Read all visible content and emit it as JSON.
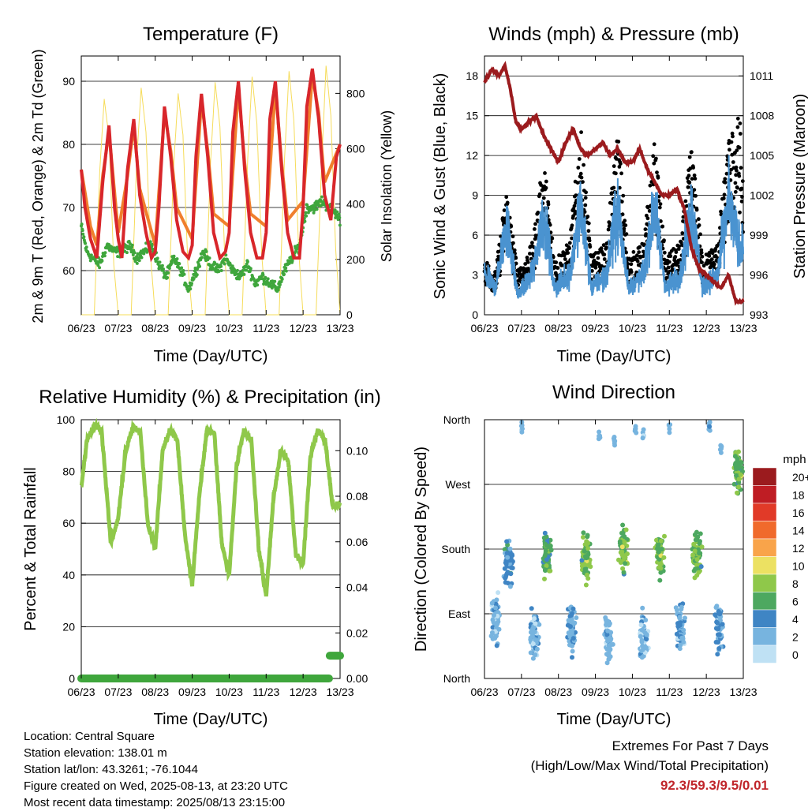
{
  "x_ticks": [
    "06/23",
    "07/23",
    "08/23",
    "09/23",
    "10/23",
    "11/23",
    "12/23",
    "13/23"
  ],
  "colors": {
    "temp_2m": "#d8262b",
    "temp_9m": "#f07f2c",
    "dewpoint": "#3fa63c",
    "solar": "#f6dc5a",
    "wind": "#4a93d0",
    "gust": "#000000",
    "pressure": "#9b1b1e",
    "humidity": "#8fc84a",
    "rain": "#3fa63c"
  },
  "chart_data": [
    {
      "type": "line",
      "title": "Temperature (F)",
      "xlabel": "Time (Day/UTC)",
      "ylabel": "2m & 9m T (Red, Orange) & 2m Td (Green)",
      "y2label": "Solar Insolation (Yellow)",
      "x_ticks": [
        "06/23",
        "07/23",
        "08/23",
        "09/23",
        "10/23",
        "11/23",
        "12/23",
        "13/23"
      ],
      "ylim": [
        53,
        94
      ],
      "yticks": [
        60,
        70,
        80,
        90
      ],
      "y2lim": [
        0,
        935
      ],
      "y2ticks": [
        0,
        200,
        400,
        600,
        800
      ],
      "grid": true,
      "series": [
        {
          "name": "2m T",
          "color": "#d8262b",
          "x": [
            0,
            0.1,
            0.25,
            0.42,
            0.58,
            0.75,
            0.9,
            1.0,
            1.1,
            1.25,
            1.42,
            1.58,
            1.75,
            1.9,
            2.0,
            2.1,
            2.25,
            2.42,
            2.58,
            2.75,
            2.9,
            3.0,
            3.1,
            3.25,
            3.42,
            3.58,
            3.75,
            3.9,
            4.0,
            4.1,
            4.25,
            4.42,
            4.58,
            4.75,
            4.9,
            5.0,
            5.1,
            5.25,
            5.42,
            5.58,
            5.75,
            5.9,
            6.0,
            6.1,
            6.25,
            6.42,
            6.58,
            6.75,
            6.9,
            7.0
          ],
          "y": [
            76,
            70,
            65,
            62,
            74,
            83,
            70,
            65,
            62,
            76,
            84,
            72,
            66,
            62,
            63,
            70,
            86,
            78,
            68,
            63,
            62,
            64,
            78,
            88,
            78,
            66,
            62,
            63,
            66,
            82,
            90,
            76,
            66,
            62,
            62,
            66,
            84,
            90,
            76,
            66,
            62,
            62,
            70,
            86,
            92,
            84,
            72,
            68,
            78,
            80
          ]
        },
        {
          "name": "9m T",
          "color": "#f07f2c",
          "x": [
            0,
            0.25,
            0.42,
            0.58,
            0.75,
            1.0,
            1.25,
            1.42,
            1.58,
            2.0,
            2.25,
            2.42,
            2.58,
            3.0,
            3.25,
            3.42,
            3.58,
            4.0,
            4.25,
            4.42,
            4.58,
            5.0,
            5.25,
            5.42,
            5.58,
            6.0,
            6.25,
            6.42,
            6.58,
            7.0
          ],
          "y": [
            76,
            67,
            64,
            75,
            82,
            66,
            75,
            83,
            73,
            64,
            85,
            79,
            70,
            65,
            87,
            79,
            69,
            67,
            89,
            77,
            69,
            67,
            89,
            77,
            68,
            71,
            91,
            85,
            74,
            80
          ]
        },
        {
          "name": "2m Td",
          "color": "#3fa63c",
          "x": [
            0,
            0.15,
            0.3,
            0.5,
            0.7,
            0.9,
            1.1,
            1.3,
            1.5,
            1.7,
            1.9,
            2.1,
            2.3,
            2.5,
            2.7,
            2.9,
            3.1,
            3.3,
            3.5,
            3.7,
            3.9,
            4.1,
            4.3,
            4.5,
            4.7,
            4.9,
            5.1,
            5.3,
            5.5,
            5.7,
            5.9,
            6.1,
            6.3,
            6.5,
            6.7,
            6.9,
            7.0
          ],
          "y": [
            67,
            63,
            62,
            61,
            64,
            63,
            63,
            64,
            62,
            63,
            64,
            61,
            59,
            62,
            60,
            57,
            60,
            63,
            61,
            60,
            62,
            60,
            59,
            61,
            58,
            59,
            58,
            57,
            60,
            62,
            64,
            70,
            70,
            71,
            70,
            69,
            68
          ]
        },
        {
          "name": "Solar",
          "color": "#f6dc5a",
          "axis": "y2",
          "x": [
            0,
            0.35,
            0.5,
            0.62,
            0.75,
            0.88,
            1.0,
            1.35,
            1.5,
            1.62,
            1.75,
            1.88,
            2.0,
            2.35,
            2.5,
            2.62,
            2.75,
            2.88,
            3.0,
            3.35,
            3.5,
            3.62,
            3.75,
            3.88,
            4.0,
            4.35,
            4.5,
            4.62,
            4.75,
            4.88,
            5.0,
            5.35,
            5.5,
            5.62,
            5.75,
            5.88,
            6.0,
            6.35,
            6.5,
            6.62,
            6.75,
            6.88,
            7.0
          ],
          "y": [
            0,
            0,
            520,
            780,
            640,
            180,
            0,
            0,
            560,
            820,
            660,
            200,
            0,
            0,
            540,
            800,
            650,
            190,
            0,
            0,
            560,
            840,
            680,
            210,
            0,
            0,
            560,
            860,
            690,
            220,
            0,
            0,
            570,
            880,
            700,
            230,
            0,
            0,
            540,
            900,
            720,
            240,
            0
          ]
        }
      ]
    },
    {
      "type": "line",
      "title": "Winds (mph) & Pressure (mb)",
      "xlabel": "Time (Day/UTC)",
      "ylabel": "Sonic Wind & Gust (Blue, Black)",
      "y2label": "Station Pressure (Maroon)",
      "x_ticks": [
        "06/23",
        "07/23",
        "08/23",
        "09/23",
        "10/23",
        "11/23",
        "12/23",
        "13/23"
      ],
      "ylim": [
        0,
        19.5
      ],
      "yticks": [
        0,
        3,
        6,
        9,
        12,
        15,
        18
      ],
      "y2lim": [
        993,
        1012.5
      ],
      "y2ticks": [
        993,
        996,
        999,
        1002,
        1005,
        1008,
        1011
      ],
      "grid": true,
      "series": [
        {
          "name": "Sonic Wind",
          "color": "#4a93d0",
          "x": [
            0,
            0.3,
            0.6,
            0.9,
            1.3,
            1.6,
            1.9,
            2.3,
            2.6,
            2.9,
            3.3,
            3.6,
            3.9,
            4.3,
            4.6,
            4.9,
            5.3,
            5.6,
            5.9,
            6.3,
            6.6,
            6.9,
            7.0
          ],
          "y": [
            3,
            2,
            7,
            1.5,
            3,
            7.5,
            2,
            3,
            8,
            2,
            3,
            8,
            2,
            3,
            8,
            2,
            3,
            8,
            2,
            3,
            8.5,
            5,
            5
          ]
        },
        {
          "name": "Gust",
          "color": "#000000",
          "x": [
            0,
            0.3,
            0.6,
            0.9,
            1.3,
            1.6,
            1.9,
            2.3,
            2.6,
            2.9,
            3.3,
            3.6,
            3.9,
            4.3,
            4.6,
            4.9,
            5.3,
            5.6,
            5.9,
            6.3,
            6.6,
            6.9,
            7.0
          ],
          "y": [
            4,
            3,
            9,
            3,
            5,
            11,
            4,
            5,
            13,
            4,
            5,
            13,
            4,
            5,
            12,
            4,
            5,
            12,
            4,
            5,
            12,
            14,
            9
          ]
        },
        {
          "name": "Station Pressure",
          "color": "#9b1b1e",
          "axis": "y2",
          "x": [
            0,
            0.2,
            0.4,
            0.55,
            0.7,
            0.85,
            1.0,
            1.2,
            1.4,
            1.6,
            1.8,
            2.0,
            2.2,
            2.4,
            2.6,
            2.8,
            3.0,
            3.2,
            3.4,
            3.6,
            3.8,
            4.0,
            4.2,
            4.4,
            4.6,
            4.8,
            5.0,
            5.2,
            5.4,
            5.6,
            5.8,
            6.0,
            6.2,
            6.4,
            6.6,
            6.8,
            7.0
          ],
          "y": [
            1010.5,
            1011.5,
            1011,
            1011.8,
            1010,
            1007.5,
            1007,
            1007.5,
            1008,
            1006.5,
            1005.5,
            1004.5,
            1006,
            1007,
            1005.5,
            1005,
            1005.5,
            1006,
            1005,
            1005.5,
            1004.5,
            1004.5,
            1005.5,
            1004,
            1003,
            1002,
            1002,
            1002.5,
            1001,
            998,
            996.5,
            996,
            995.5,
            995,
            996,
            994,
            994
          ]
        }
      ]
    },
    {
      "type": "line",
      "title": "Relative Humidity (%) & Precipitation (in)",
      "xlabel": "Time (Day/UTC)",
      "ylabel": "Percent & Total Rainfall",
      "x_ticks": [
        "06/23",
        "07/23",
        "08/23",
        "09/23",
        "10/23",
        "11/23",
        "12/23",
        "13/23"
      ],
      "ylim": [
        0,
        100
      ],
      "yticks": [
        0,
        20,
        40,
        60,
        80,
        100
      ],
      "y2lim": [
        0,
        0.1136
      ],
      "y2ticks": [
        0.0,
        0.02,
        0.04,
        0.06,
        0.08,
        0.1
      ],
      "grid": true,
      "series": [
        {
          "name": "Relative Humidity",
          "color": "#8fc84a",
          "x": [
            0,
            0.15,
            0.35,
            0.55,
            0.8,
            1.0,
            1.2,
            1.4,
            1.6,
            1.8,
            2.0,
            2.2,
            2.4,
            2.6,
            2.8,
            3.0,
            3.2,
            3.4,
            3.6,
            3.8,
            4.0,
            4.2,
            4.4,
            4.6,
            4.8,
            5.0,
            5.2,
            5.4,
            5.6,
            5.8,
            6.0,
            6.2,
            6.4,
            6.6,
            6.8,
            7.0
          ],
          "y": [
            74,
            92,
            98,
            96,
            52,
            62,
            88,
            97,
            95,
            60,
            50,
            88,
            96,
            92,
            56,
            36,
            72,
            96,
            95,
            52,
            40,
            82,
            96,
            92,
            50,
            32,
            70,
            88,
            84,
            48,
            44,
            86,
            96,
            92,
            66,
            68
          ]
        },
        {
          "name": "Total Precipitation",
          "color": "#3fa63c",
          "axis": "y2",
          "x": [
            0,
            6.7,
            6.72,
            7.0
          ],
          "y": [
            0.0,
            0.0,
            0.01,
            0.01
          ]
        }
      ]
    },
    {
      "type": "scatter",
      "title": "Wind Direction",
      "xlabel": "Time (Day/UTC)",
      "ylabel": "Direction (Colored By Speed)",
      "x_ticks": [
        "06/23",
        "07/23",
        "08/23",
        "09/23",
        "10/23",
        "11/23",
        "12/23",
        "13/23"
      ],
      "yticks": [
        "North",
        "East",
        "South",
        "West",
        "North"
      ],
      "ylim": [
        0,
        360
      ],
      "legend_title": "mph",
      "legend_labels": [
        "20+",
        "18",
        "16",
        "14",
        "12",
        "10",
        "8",
        "6",
        "4",
        "2",
        "0"
      ],
      "legend_colors": [
        "#9b1b1e",
        "#bf1d24",
        "#e13a28",
        "#f06a2c",
        "#f9a44a",
        "#ece162",
        "#8fc84a",
        "#4da860",
        "#3f85c4",
        "#77b4df",
        "#bfe1f4"
      ],
      "legend_placement": "right",
      "clusters": [
        {
          "x": 0.3,
          "dir": 80,
          "speed": 2
        },
        {
          "x": 0.65,
          "dir": 160,
          "speed": 4
        },
        {
          "x": 1.35,
          "dir": 60,
          "speed": 2
        },
        {
          "x": 1.7,
          "dir": 175,
          "speed": 6
        },
        {
          "x": 2.35,
          "dir": 70,
          "speed": 3
        },
        {
          "x": 2.75,
          "dir": 170,
          "speed": 7
        },
        {
          "x": 3.35,
          "dir": 55,
          "speed": 2
        },
        {
          "x": 3.75,
          "dir": 180,
          "speed": 7
        },
        {
          "x": 4.3,
          "dir": 60,
          "speed": 2
        },
        {
          "x": 4.75,
          "dir": 170,
          "speed": 7
        },
        {
          "x": 5.3,
          "dir": 65,
          "speed": 3
        },
        {
          "x": 5.75,
          "dir": 170,
          "speed": 7
        },
        {
          "x": 6.35,
          "dir": 70,
          "speed": 3
        },
        {
          "x": 6.85,
          "dir": 290,
          "speed": 7
        }
      ]
    }
  ],
  "info": {
    "location": "Location: Central Square",
    "elevation": "Station elevation: 138.01 m",
    "latlon": "Station lat/lon: 43.3261; -76.1044",
    "created": "Figure created on Wed, 2025-08-13, at 23:20 UTC",
    "recent": "Most recent data timestamp: 2025/08/13 23:15:00"
  },
  "extremes": {
    "title": "Extremes For Past 7 Days",
    "subtitle": "(High/Low/Max Wind/Total Precipitation)",
    "values": "92.3/59.3/9.5/0.01"
  }
}
